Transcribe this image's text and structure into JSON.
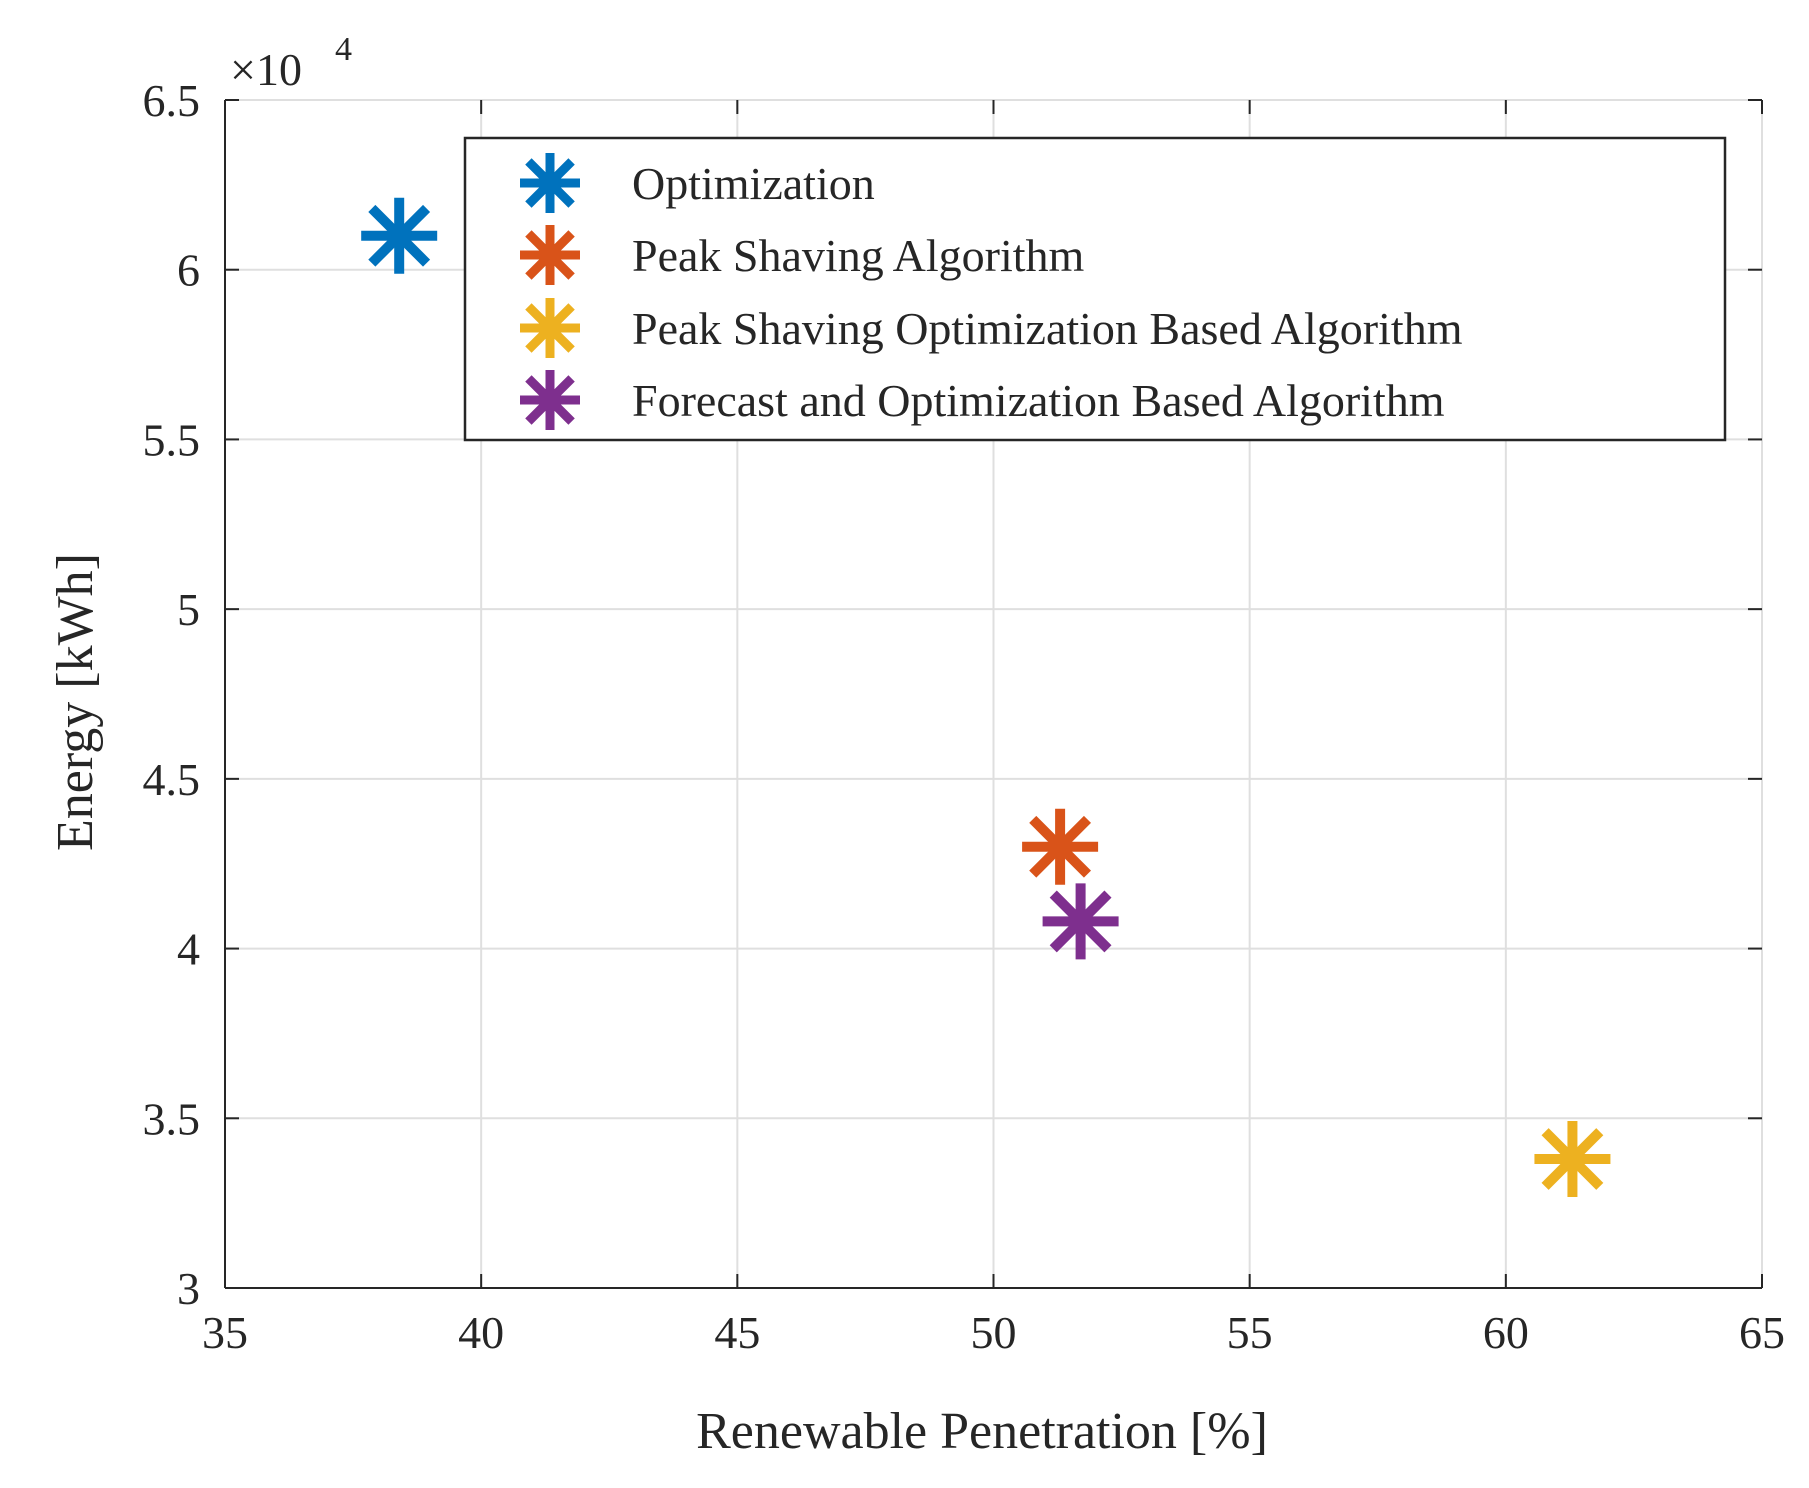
{
  "chart_data": {
    "type": "scatter",
    "title": "",
    "xlabel": "Renewable Penetration [%]",
    "ylabel": "Energy [kWh]",
    "y_exponent_label": "×10",
    "y_exponent_power": "4",
    "xlim": [
      35,
      65
    ],
    "ylim": [
      3,
      6.5
    ],
    "xticks": [
      35,
      40,
      45,
      50,
      55,
      60,
      65
    ],
    "yticks": [
      3,
      3.5,
      4,
      4.5,
      5,
      5.5,
      6,
      6.5
    ],
    "xtick_labels": [
      "35",
      "40",
      "45",
      "50",
      "55",
      "60",
      "65"
    ],
    "ytick_labels": [
      "3",
      "3.5",
      "4",
      "4.5",
      "5",
      "5.5",
      "6",
      "6.5"
    ],
    "grid": true,
    "legend_position": "top-right",
    "marker": "asterisk",
    "series": [
      {
        "name": "Optimization",
        "color": "#0072BD",
        "x": 38.4,
        "y": 6.1
      },
      {
        "name": "Peak Shaving Algorithm",
        "color": "#D95319",
        "x": 51.3,
        "y": 4.3
      },
      {
        "name": "Peak Shaving Optimization Based Algorithm",
        "color": "#EDB120",
        "x": 61.3,
        "y": 3.38
      },
      {
        "name": "Forecast and Optimization Based Algorithm",
        "color": "#7E2F8E",
        "x": 51.7,
        "y": 4.08
      }
    ]
  }
}
